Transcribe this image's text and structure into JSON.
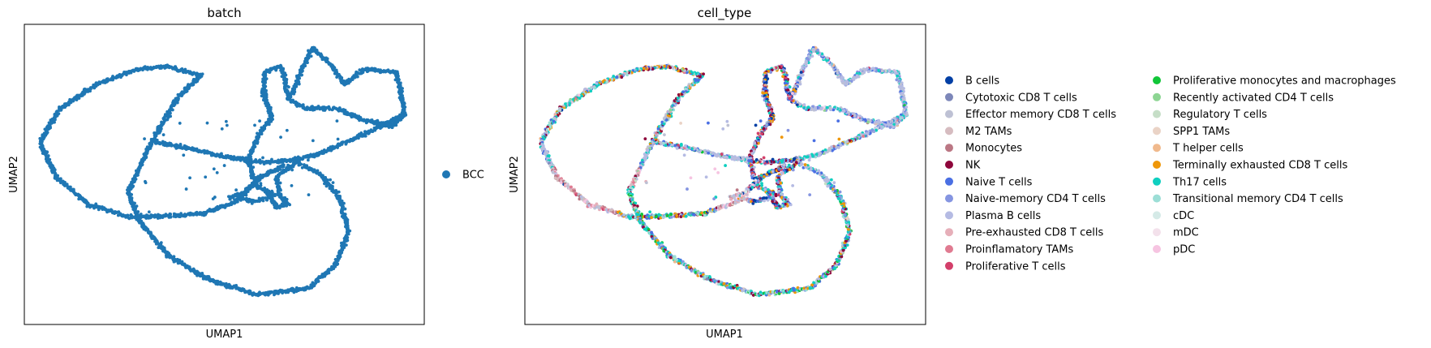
{
  "chart_data": [
    {
      "type": "scatter",
      "title": "batch",
      "xlabel": "UMAP1",
      "ylabel": "UMAP2",
      "xlim": [
        0,
        10
      ],
      "ylim": [
        0,
        10
      ],
      "grid": false,
      "ticks": false,
      "legend_position": "right",
      "legend": [
        {
          "label": "BCC",
          "color": "#1f77b4"
        }
      ],
      "point_color": "#1f77b4",
      "structure": "Connected loops of cells on a 2-D UMAP embedding; paths below list the cell trajectories in data units",
      "paths": [
        [
          [
            9.3,
            8.4
          ],
          [
            9.4,
            7.8
          ],
          [
            9.5,
            7.0
          ],
          [
            9.2,
            6.6
          ],
          [
            8.5,
            6.8
          ],
          [
            7.8,
            7.2
          ],
          [
            7.0,
            7.2
          ],
          [
            6.6,
            7.5
          ],
          [
            6.5,
            8.3
          ],
          [
            6.4,
            8.6
          ],
          [
            6.0,
            8.4
          ],
          [
            6.0,
            7.6
          ],
          [
            6.2,
            6.9
          ],
          [
            5.9,
            6.4
          ],
          [
            5.6,
            5.5
          ],
          [
            5.8,
            4.6
          ],
          [
            6.3,
            4.3
          ]
        ],
        [
          [
            9.3,
            8.4
          ],
          [
            8.5,
            8.5
          ],
          [
            8.0,
            8.0
          ],
          [
            7.7,
            8.6
          ],
          [
            7.2,
            9.2
          ],
          [
            7.0,
            8.7
          ],
          [
            6.8,
            8.0
          ],
          [
            6.6,
            7.5
          ]
        ],
        [
          [
            9.5,
            7.0
          ],
          [
            8.6,
            6.4
          ],
          [
            7.4,
            5.7
          ],
          [
            6.8,
            5.5
          ],
          [
            6.0,
            5.4
          ],
          [
            5.0,
            5.6
          ],
          [
            4.0,
            5.9
          ],
          [
            3.2,
            6.1
          ]
        ],
        [
          [
            3.2,
            6.1
          ],
          [
            3.8,
            7.5
          ],
          [
            4.4,
            8.3
          ],
          [
            3.6,
            8.6
          ],
          [
            2.8,
            8.5
          ],
          [
            1.8,
            8.0
          ],
          [
            0.9,
            7.2
          ],
          [
            0.4,
            6.1
          ],
          [
            0.8,
            4.9
          ],
          [
            1.6,
            4.0
          ],
          [
            2.6,
            3.6
          ],
          [
            3.4,
            3.6
          ],
          [
            4.5,
            3.7
          ],
          [
            5.3,
            4.1
          ],
          [
            5.9,
            4.9
          ],
          [
            6.5,
            5.3
          ]
        ],
        [
          [
            3.2,
            6.1
          ],
          [
            2.9,
            5.3
          ],
          [
            2.6,
            4.4
          ],
          [
            2.9,
            3.4
          ],
          [
            3.6,
            2.3
          ],
          [
            4.6,
            1.5
          ],
          [
            5.8,
            1.0
          ],
          [
            7.1,
            1.2
          ],
          [
            7.8,
            2.0
          ],
          [
            8.1,
            3.1
          ],
          [
            7.9,
            4.2
          ],
          [
            7.4,
            5.0
          ],
          [
            6.8,
            5.4
          ],
          [
            6.3,
            4.9
          ],
          [
            6.4,
            4.3
          ],
          [
            6.6,
            4.0
          ],
          [
            6.3,
            3.9
          ],
          [
            6.1,
            4.4
          ]
        ],
        [
          [
            5.9,
            4.9
          ],
          [
            5.5,
            4.4
          ],
          [
            5.1,
            4.2
          ]
        ],
        [
          [
            5.3,
            4.3
          ],
          [
            5.7,
            4.1
          ],
          [
            6.1,
            4.2
          ]
        ]
      ]
    },
    {
      "type": "scatter",
      "title": "cell_type",
      "xlabel": "UMAP1",
      "ylabel": "UMAP2",
      "xlim": [
        0,
        10
      ],
      "ylim": [
        0,
        10
      ],
      "grid": false,
      "ticks": false,
      "legend_position": "right",
      "legend_columns": 2,
      "legend": [
        {
          "label": "B cells",
          "color": "#023fa5"
        },
        {
          "label": "Cytotoxic CD8 T cells",
          "color": "#7d87b9"
        },
        {
          "label": "Effector memory CD8 T cells",
          "color": "#bec1d4"
        },
        {
          "label": "M2 TAMs",
          "color": "#d6bcc0"
        },
        {
          "label": "Monocytes",
          "color": "#bb7784"
        },
        {
          "label": "NK",
          "color": "#8e063b"
        },
        {
          "label": "Naive T cells",
          "color": "#4a6fe3"
        },
        {
          "label": "Naive-memory CD4 T cells",
          "color": "#8595e1"
        },
        {
          "label": "Plasma B cells",
          "color": "#b5bbe3"
        },
        {
          "label": "Pre-exhausted CD8 T cells",
          "color": "#e6afb9"
        },
        {
          "label": "Proinflamatory TAMs",
          "color": "#e07b91"
        },
        {
          "label": "Proliferative T cells",
          "color": "#d33f6a"
        },
        {
          "label": "Proliferative monocytes and macrophages",
          "color": "#11c638"
        },
        {
          "label": "Recently activated CD4 T cells",
          "color": "#8dd593"
        },
        {
          "label": "Regulatory T cells",
          "color": "#c6dec7"
        },
        {
          "label": "SPP1 TAMs",
          "color": "#ead3c6"
        },
        {
          "label": "T helper cells",
          "color": "#f0b98d"
        },
        {
          "label": "Terminally exhausted CD8 T cells",
          "color": "#ef9708"
        },
        {
          "label": "Th17 cells",
          "color": "#0fcfc0"
        },
        {
          "label": "Transitional memory CD4 T cells",
          "color": "#9cded6"
        },
        {
          "label": "cDC",
          "color": "#d5eae7"
        },
        {
          "label": "mDC",
          "color": "#f3e1eb"
        },
        {
          "label": "pDC",
          "color": "#f6c4e1"
        }
      ],
      "structure": "Same UMAP layout as the batch panel, cells colored by cell_type",
      "dominant_types_by_region": {
        "upper_right_branch": [
          "Plasma B cells",
          "Effector memory CD8 T cells"
        ],
        "left_loop_top": [
          "Th17 cells",
          "Plasma B cells",
          "Naive T cells"
        ],
        "left_loop_inner_band": [
          "M2 TAMs",
          "Monocytes",
          "pDC",
          "Plasma B cells"
        ],
        "lower_loop": [
          "Th17 cells",
          "Naive T cells",
          "Terminally exhausted CD8 T cells",
          "Proliferative monocytes and macrophages"
        ],
        "central_column": [
          "NK",
          "Naive T cells",
          "Terminally exhausted CD8 T cells",
          "Th17 cells"
        ]
      }
    }
  ]
}
